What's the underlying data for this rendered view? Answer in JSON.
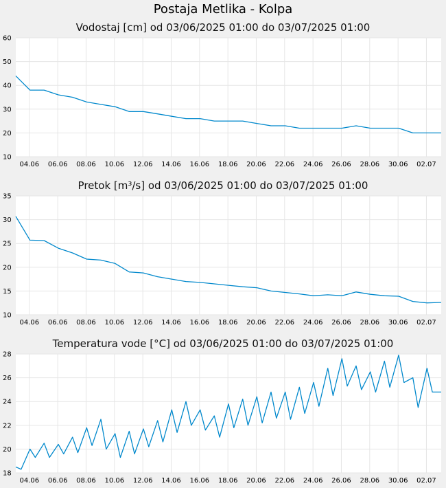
{
  "page": {
    "title": "Postaja Metlika - Kolpa"
  },
  "colors": {
    "series": "#0088cc",
    "grid": "#e6e6e6",
    "plot_bg": "#ffffff",
    "page_bg": "#f0f0f0"
  },
  "chart_data": [
    {
      "type": "line",
      "title": "Vodostaj [cm] od 03/06/2025 01:00 do 03/07/2025 01:00",
      "xlabel": "",
      "ylabel": "",
      "ylim": [
        10,
        60
      ],
      "yticks": [
        10,
        20,
        30,
        40,
        50,
        60
      ],
      "xlim": [
        "2025-06-03",
        "2025-07-03"
      ],
      "xtick_labels": [
        "04.06",
        "06.06",
        "08.06",
        "10.06",
        "12.06",
        "14.06",
        "16.06",
        "18.06",
        "20.06",
        "22.06",
        "24.06",
        "26.06",
        "28.06",
        "30.06",
        "02.07"
      ],
      "grid": true,
      "legend": "none",
      "series": [
        {
          "x": [
            "2025-06-03",
            "2025-06-04",
            "2025-06-05",
            "2025-06-06",
            "2025-06-07",
            "2025-06-08",
            "2025-06-09",
            "2025-06-10",
            "2025-06-11",
            "2025-06-12",
            "2025-06-13",
            "2025-06-14",
            "2025-06-15",
            "2025-06-16",
            "2025-06-17",
            "2025-06-18",
            "2025-06-19",
            "2025-06-20",
            "2025-06-21",
            "2025-06-22",
            "2025-06-23",
            "2025-06-24",
            "2025-06-25",
            "2025-06-26",
            "2025-06-27",
            "2025-06-28",
            "2025-06-29",
            "2025-06-30",
            "2025-07-01",
            "2025-07-02",
            "2025-07-03"
          ],
          "values": [
            44,
            38,
            38,
            36,
            35,
            33,
            32,
            31,
            29,
            29,
            28,
            27,
            26,
            26,
            25,
            25,
            25,
            24,
            23,
            23,
            22,
            22,
            22,
            22,
            23,
            22,
            22,
            22,
            20,
            20,
            20
          ]
        }
      ]
    },
    {
      "type": "line",
      "title": "Pretok [m³/s] od 03/06/2025 01:00 do 03/07/2025 01:00",
      "xlabel": "",
      "ylabel": "",
      "ylim": [
        10,
        35
      ],
      "yticks": [
        10,
        15,
        20,
        25,
        30,
        35
      ],
      "xlim": [
        "2025-06-03",
        "2025-07-03"
      ],
      "xtick_labels": [
        "04.06",
        "06.06",
        "08.06",
        "10.06",
        "12.06",
        "14.06",
        "16.06",
        "18.06",
        "20.06",
        "22.06",
        "24.06",
        "26.06",
        "28.06",
        "30.06",
        "02.07"
      ],
      "grid": true,
      "legend": "none",
      "series": [
        {
          "x": [
            "2025-06-03",
            "2025-06-04",
            "2025-06-05",
            "2025-06-06",
            "2025-06-07",
            "2025-06-08",
            "2025-06-09",
            "2025-06-10",
            "2025-06-11",
            "2025-06-12",
            "2025-06-13",
            "2025-06-14",
            "2025-06-15",
            "2025-06-16",
            "2025-06-17",
            "2025-06-18",
            "2025-06-19",
            "2025-06-20",
            "2025-06-21",
            "2025-06-22",
            "2025-06-23",
            "2025-06-24",
            "2025-06-25",
            "2025-06-26",
            "2025-06-27",
            "2025-06-28",
            "2025-06-29",
            "2025-06-30",
            "2025-07-01",
            "2025-07-02",
            "2025-07-03"
          ],
          "values": [
            30.7,
            25.7,
            25.6,
            24.0,
            23.0,
            21.7,
            21.5,
            20.8,
            19.0,
            18.8,
            18.0,
            17.5,
            17.0,
            16.8,
            16.5,
            16.2,
            15.9,
            15.7,
            15.0,
            14.7,
            14.4,
            14.0,
            14.2,
            14.0,
            14.8,
            14.3,
            14.0,
            13.9,
            12.8,
            12.5,
            12.6
          ]
        }
      ]
    },
    {
      "type": "line",
      "title": "Temperatura vode [°C] od 03/06/2025 01:00 do 03/07/2025 01:00",
      "xlabel": "",
      "ylabel": "",
      "ylim": [
        18,
        28
      ],
      "yticks": [
        18,
        20,
        22,
        24,
        26,
        28
      ],
      "xlim": [
        "2025-06-03",
        "2025-07-03"
      ],
      "xtick_labels": [
        "04.06",
        "06.06",
        "08.06",
        "10.06",
        "12.06",
        "14.06",
        "16.06",
        "18.06",
        "20.06",
        "22.06",
        "24.06",
        "26.06",
        "28.06",
        "30.06",
        "02.07"
      ],
      "grid": true,
      "legend": "none",
      "series": [
        {
          "x": [
            "2025-06-03",
            "2025-06-03T10:00",
            "2025-06-04",
            "2025-06-04T10:00",
            "2025-06-05",
            "2025-06-05T10:00",
            "2025-06-06",
            "2025-06-06T10:00",
            "2025-06-07",
            "2025-06-07T10:00",
            "2025-06-08",
            "2025-06-08T10:00",
            "2025-06-09",
            "2025-06-09T10:00",
            "2025-06-10",
            "2025-06-10T10:00",
            "2025-06-11",
            "2025-06-11T10:00",
            "2025-06-12",
            "2025-06-12T10:00",
            "2025-06-13",
            "2025-06-13T10:00",
            "2025-06-14",
            "2025-06-14T10:00",
            "2025-06-15",
            "2025-06-15T10:00",
            "2025-06-16",
            "2025-06-16T10:00",
            "2025-06-17",
            "2025-06-17T10:00",
            "2025-06-18",
            "2025-06-18T10:00",
            "2025-06-19",
            "2025-06-19T10:00",
            "2025-06-20",
            "2025-06-20T10:00",
            "2025-06-21",
            "2025-06-21T10:00",
            "2025-06-22",
            "2025-06-22T10:00",
            "2025-06-23",
            "2025-06-23T10:00",
            "2025-06-24",
            "2025-06-24T10:00",
            "2025-06-25",
            "2025-06-25T10:00",
            "2025-06-26",
            "2025-06-26T10:00",
            "2025-06-27",
            "2025-06-27T10:00",
            "2025-06-28",
            "2025-06-28T10:00",
            "2025-06-29",
            "2025-06-29T10:00",
            "2025-06-30",
            "2025-06-30T10:00",
            "2025-07-01",
            "2025-07-01T10:00",
            "2025-07-02",
            "2025-07-02T10:00",
            "2025-07-03"
          ],
          "values": [
            18.5,
            18.3,
            20.0,
            19.3,
            20.5,
            19.3,
            20.4,
            19.6,
            21.0,
            19.7,
            21.8,
            20.3,
            22.5,
            20.0,
            21.3,
            19.3,
            21.5,
            19.6,
            21.7,
            20.2,
            22.4,
            20.6,
            23.3,
            21.4,
            24.0,
            22.0,
            23.3,
            21.6,
            22.8,
            21.0,
            23.8,
            21.8,
            24.2,
            22.0,
            24.4,
            22.2,
            24.8,
            22.6,
            24.8,
            22.5,
            25.2,
            23.0,
            25.6,
            23.6,
            26.8,
            24.5,
            27.6,
            25.3,
            27.0,
            25.0,
            26.5,
            24.8,
            27.4,
            25.2,
            27.9,
            25.6,
            26.0,
            23.5,
            26.8,
            24.8,
            24.8
          ]
        }
      ]
    }
  ]
}
